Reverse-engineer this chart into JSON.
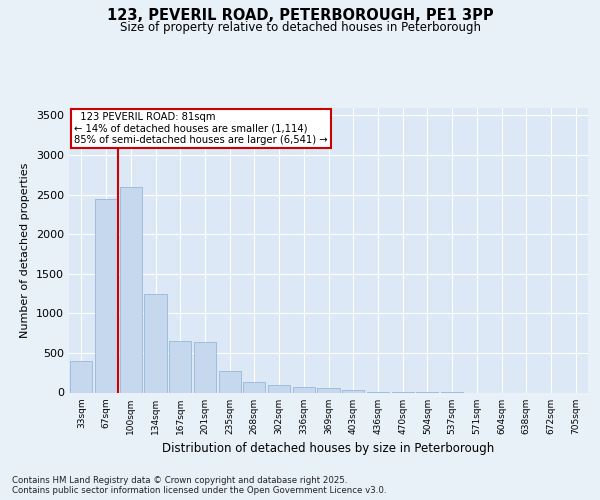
{
  "title_line1": "123, PEVERIL ROAD, PETERBOROUGH, PE1 3PP",
  "title_line2": "Size of property relative to detached houses in Peterborough",
  "xlabel": "Distribution of detached houses by size in Peterborough",
  "ylabel": "Number of detached properties",
  "footnote": "Contains HM Land Registry data © Crown copyright and database right 2025.\nContains public sector information licensed under the Open Government Licence v3.0.",
  "bar_color": "#c5d8ee",
  "bar_edge_color": "#8ab0d4",
  "background_color": "#e8f0f8",
  "plot_bg_color": "#dce8f5",
  "grid_color": "#ffffff",
  "annotation_box_color": "#cc0000",
  "annotation_line_color": "#cc0000",
  "categories": [
    "33sqm",
    "67sqm",
    "100sqm",
    "134sqm",
    "167sqm",
    "201sqm",
    "235sqm",
    "268sqm",
    "302sqm",
    "336sqm",
    "369sqm",
    "403sqm",
    "436sqm",
    "470sqm",
    "504sqm",
    "537sqm",
    "571sqm",
    "604sqm",
    "638sqm",
    "672sqm",
    "705sqm"
  ],
  "values": [
    400,
    2440,
    2590,
    1250,
    650,
    640,
    270,
    130,
    100,
    65,
    55,
    30,
    10,
    5,
    3,
    2,
    0,
    0,
    0,
    0,
    0
  ],
  "ylim": [
    0,
    3600
  ],
  "yticks": [
    0,
    500,
    1000,
    1500,
    2000,
    2500,
    3000,
    3500
  ],
  "annotation_text_line1": "123 PEVERIL ROAD: 81sqm",
  "annotation_text_line2": "← 14% of detached houses are smaller (1,114)",
  "annotation_text_line3": "85% of semi-detached houses are larger (6,541) →",
  "vline_x": 1.0
}
